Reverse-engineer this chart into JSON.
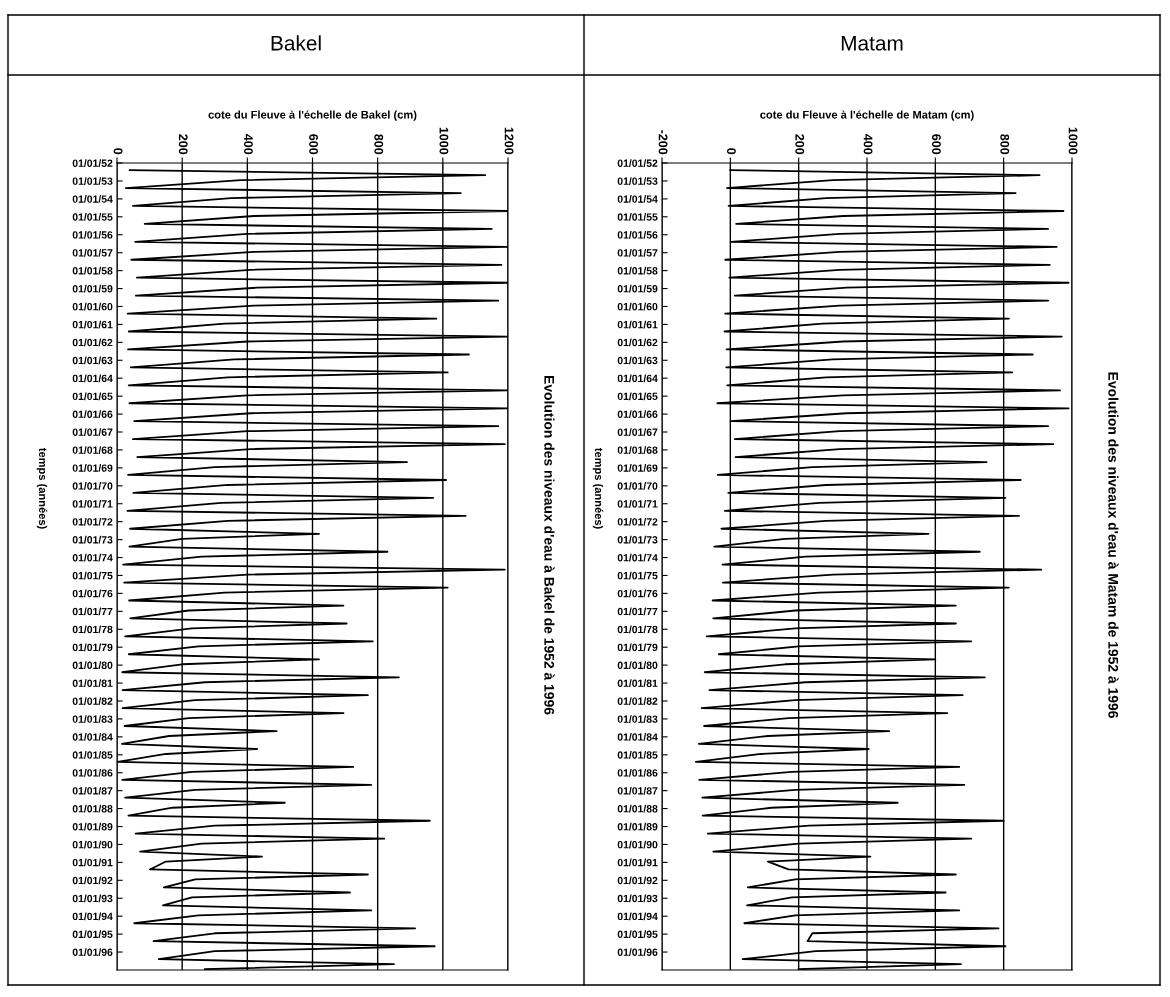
{
  "chart_data": [
    {
      "type": "line",
      "orientation": "horizontal",
      "title": "Bakel",
      "annotations": [
        "Evolution des niveaux d'eau à Bakel de 1952 à 1996"
      ],
      "xlabel": "cote du Fleuve à l'échelle de Bakel (cm)",
      "ylabel": "temps (années)",
      "grid": "x",
      "xlim": [
        0,
        1200
      ],
      "xticks": [
        0,
        200,
        400,
        600,
        800,
        1000,
        1200
      ],
      "ylim": [
        "1997-01-01",
        "1952-01-01"
      ],
      "yticks": [
        {
          "value": "1952-01-01",
          "label": "01/01/52"
        },
        {
          "value": "1953-01-01",
          "label": "01/01/53"
        },
        {
          "value": "1954-01-01",
          "label": "01/01/54"
        },
        {
          "value": "1955-01-01",
          "label": "01/01/55"
        },
        {
          "value": "1956-01-01",
          "label": "01/01/56"
        },
        {
          "value": "1957-01-01",
          "label": "01/01/57"
        },
        {
          "value": "1958-01-01",
          "label": "01/01/58"
        },
        {
          "value": "1959-01-01",
          "label": "01/01/59"
        },
        {
          "value": "1960-01-01",
          "label": "01/01/60"
        },
        {
          "value": "1961-01-01",
          "label": "01/01/61"
        },
        {
          "value": "1962-01-01",
          "label": "01/01/62"
        },
        {
          "value": "1963-01-01",
          "label": "01/01/63"
        },
        {
          "value": "1964-01-01",
          "label": "01/01/64"
        },
        {
          "value": "1965-01-01",
          "label": "01/01/65"
        },
        {
          "value": "1966-01-01",
          "label": "01/01/66"
        },
        {
          "value": "1967-01-01",
          "label": "01/01/67"
        },
        {
          "value": "1968-01-01",
          "label": "01/01/68"
        },
        {
          "value": "1969-01-01",
          "label": "01/01/69"
        },
        {
          "value": "1970-01-01",
          "label": "01/01/70"
        },
        {
          "value": "1971-01-01",
          "label": "01/01/71"
        },
        {
          "value": "1972-01-01",
          "label": "01/01/72"
        },
        {
          "value": "1973-01-01",
          "label": "01/01/73"
        },
        {
          "value": "1974-01-01",
          "label": "01/01/74"
        },
        {
          "value": "1975-01-01",
          "label": "01/01/75"
        },
        {
          "value": "1976-01-01",
          "label": "01/01/76"
        },
        {
          "value": "1977-01-01",
          "label": "01/01/77"
        },
        {
          "value": "1978-01-01",
          "label": "01/01/78"
        },
        {
          "value": "1979-01-01",
          "label": "01/01/79"
        },
        {
          "value": "1980-01-01",
          "label": "01/01/80"
        },
        {
          "value": "1981-01-01",
          "label": "01/01/81"
        },
        {
          "value": "1982-01-01",
          "label": "01/01/82"
        },
        {
          "value": "1983-01-01",
          "label": "01/01/83"
        },
        {
          "value": "1984-01-01",
          "label": "01/01/84"
        },
        {
          "value": "1985-01-01",
          "label": "01/01/85"
        },
        {
          "value": "1986-01-01",
          "label": "01/01/86"
        },
        {
          "value": "1987-01-01",
          "label": "01/01/87"
        },
        {
          "value": "1988-01-01",
          "label": "01/01/88"
        },
        {
          "value": "1989-01-01",
          "label": "01/01/89"
        },
        {
          "value": "1990-01-01",
          "label": "01/01/90"
        },
        {
          "value": "1991-01-01",
          "label": "01/01/91"
        },
        {
          "value": "1992-01-01",
          "label": "01/01/92"
        },
        {
          "value": "1993-01-01",
          "label": "01/01/93"
        },
        {
          "value": "1994-01-01",
          "label": "01/01/94"
        },
        {
          "value": "1995-01-01",
          "label": "01/01/95"
        },
        {
          "value": "1996-01-01",
          "label": "01/01/96"
        }
      ],
      "x": [
        "1952-05-25",
        "1952-09-05",
        "1952-12-15",
        "1953-05-25",
        "1953-09-05",
        "1953-12-15",
        "1954-05-25",
        "1954-09-05",
        "1954-12-15",
        "1955-05-25",
        "1955-09-05",
        "1955-12-15",
        "1956-05-25",
        "1956-09-05",
        "1956-12-15",
        "1957-05-25",
        "1957-09-05",
        "1957-12-15",
        "1958-05-25",
        "1958-09-05",
        "1958-12-15",
        "1959-05-25",
        "1959-09-05",
        "1959-12-15",
        "1960-05-25",
        "1960-09-05",
        "1960-12-15",
        "1961-05-25",
        "1961-09-05",
        "1961-12-15",
        "1962-05-25",
        "1962-09-05",
        "1962-12-15",
        "1963-05-25",
        "1963-09-05",
        "1963-12-15",
        "1964-05-25",
        "1964-09-05",
        "1964-12-15",
        "1965-05-25",
        "1965-09-05",
        "1965-12-15",
        "1966-05-25",
        "1966-09-05",
        "1966-12-15",
        "1967-05-25",
        "1967-09-05",
        "1967-12-15",
        "1968-05-25",
        "1968-09-05",
        "1968-12-15",
        "1969-05-25",
        "1969-09-05",
        "1969-12-15",
        "1970-05-25",
        "1970-09-05",
        "1970-12-15",
        "1971-05-25",
        "1971-09-05",
        "1971-12-15",
        "1972-05-25",
        "1972-09-05",
        "1972-12-15",
        "1973-05-25",
        "1973-09-05",
        "1973-12-15",
        "1974-05-25",
        "1974-09-05",
        "1974-12-15",
        "1975-05-25",
        "1975-09-05",
        "1975-12-15",
        "1976-05-25",
        "1976-09-05",
        "1976-12-15",
        "1977-05-25",
        "1977-09-05",
        "1977-12-15",
        "1978-05-25",
        "1978-09-05",
        "1978-12-15",
        "1979-05-25",
        "1979-09-05",
        "1979-12-15",
        "1980-05-25",
        "1980-09-05",
        "1980-12-15",
        "1981-05-25",
        "1981-09-05",
        "1981-12-15",
        "1982-05-25",
        "1982-09-05",
        "1982-12-15",
        "1983-05-25",
        "1983-09-05",
        "1983-12-15",
        "1984-05-25",
        "1984-09-05",
        "1984-12-15",
        "1985-05-25",
        "1985-09-05",
        "1985-12-15",
        "1986-05-25",
        "1986-09-05",
        "1986-12-15",
        "1987-05-25",
        "1987-09-05",
        "1987-12-15",
        "1988-05-25",
        "1988-09-05",
        "1988-12-15",
        "1989-05-25",
        "1989-09-05",
        "1989-12-15",
        "1990-05-25",
        "1990-09-05",
        "1990-12-15",
        "1991-05-25",
        "1991-09-05",
        "1991-12-15",
        "1992-05-25",
        "1992-09-05",
        "1992-12-15",
        "1993-05-25",
        "1993-09-05",
        "1993-12-15",
        "1994-05-25",
        "1994-09-05",
        "1994-12-15",
        "1995-05-25",
        "1995-09-05",
        "1995-12-15",
        "1996-05-25",
        "1996-09-05",
        "1996-12-15"
      ],
      "series": [
        {
          "color": "#000000",
          "values": [
            39,
            1130,
            380,
            27,
            1055,
            350,
            49,
            1200,
            420,
            85,
            1150,
            400,
            56,
            1200,
            420,
            44,
            1180,
            410,
            61,
            1200,
            430,
            58,
            1170,
            420,
            33,
            980,
            330,
            36,
            1200,
            400,
            34,
            1080,
            360,
            42,
            1015,
            340,
            36,
            1200,
            400,
            38,
            1200,
            410,
            53,
            1170,
            400,
            49,
            1190,
            410,
            62,
            890,
            300,
            34,
            1010,
            340,
            50,
            970,
            320,
            32,
            1070,
            340,
            40,
            620,
            200,
            38,
            830,
            260,
            19,
            1190,
            400,
            22,
            1015,
            330,
            37,
            695,
            220,
            41,
            705,
            230,
            25,
            785,
            250,
            36,
            620,
            200,
            16,
            865,
            270,
            17,
            770,
            240,
            17,
            695,
            220,
            23,
            490,
            160,
            15,
            430,
            150,
            2,
            725,
            230,
            16,
            780,
            240,
            25,
            515,
            170,
            35,
            960,
            300,
            57,
            820,
            260,
            71,
            445,
            150,
            101,
            770,
            240,
            144,
            715,
            230,
            141,
            780,
            250,
            53,
            915,
            300,
            112,
            975,
            300,
            128,
            850,
            270
          ]
        }
      ]
    },
    {
      "type": "line",
      "orientation": "horizontal",
      "title": "Matam",
      "annotations": [
        "Evolution des niveaux d'eau à Matam de 1952 à 1996"
      ],
      "xlabel": "cote du Fleuve à l'échelle de Matam (cm)",
      "ylabel": "temps (années)",
      "grid": "x",
      "xlim": [
        -200,
        1000
      ],
      "xticks": [
        -200,
        0,
        200,
        400,
        600,
        800,
        1000
      ],
      "ylim": [
        "1997-01-01",
        "1952-01-01"
      ],
      "yticks": [
        {
          "value": "1952-01-01",
          "label": "01/01/52"
        },
        {
          "value": "1953-01-01",
          "label": "01/01/53"
        },
        {
          "value": "1954-01-01",
          "label": "01/01/54"
        },
        {
          "value": "1955-01-01",
          "label": "01/01/55"
        },
        {
          "value": "1956-01-01",
          "label": "01/01/56"
        },
        {
          "value": "1957-01-01",
          "label": "01/01/57"
        },
        {
          "value": "1958-01-01",
          "label": "01/01/58"
        },
        {
          "value": "1959-01-01",
          "label": "01/01/59"
        },
        {
          "value": "1960-01-01",
          "label": "01/01/60"
        },
        {
          "value": "1961-01-01",
          "label": "01/01/61"
        },
        {
          "value": "1962-01-01",
          "label": "01/01/62"
        },
        {
          "value": "1963-01-01",
          "label": "01/01/63"
        },
        {
          "value": "1964-01-01",
          "label": "01/01/64"
        },
        {
          "value": "1965-01-01",
          "label": "01/01/65"
        },
        {
          "value": "1966-01-01",
          "label": "01/01/66"
        },
        {
          "value": "1967-01-01",
          "label": "01/01/67"
        },
        {
          "value": "1968-01-01",
          "label": "01/01/68"
        },
        {
          "value": "1969-01-01",
          "label": "01/01/69"
        },
        {
          "value": "1970-01-01",
          "label": "01/01/70"
        },
        {
          "value": "1971-01-01",
          "label": "01/01/71"
        },
        {
          "value": "1972-01-01",
          "label": "01/01/72"
        },
        {
          "value": "1973-01-01",
          "label": "01/01/73"
        },
        {
          "value": "1974-01-01",
          "label": "01/01/74"
        },
        {
          "value": "1975-01-01",
          "label": "01/01/75"
        },
        {
          "value": "1976-01-01",
          "label": "01/01/76"
        },
        {
          "value": "1977-01-01",
          "label": "01/01/77"
        },
        {
          "value": "1978-01-01",
          "label": "01/01/78"
        },
        {
          "value": "1979-01-01",
          "label": "01/01/79"
        },
        {
          "value": "1980-01-01",
          "label": "01/01/80"
        },
        {
          "value": "1981-01-01",
          "label": "01/01/81"
        },
        {
          "value": "1982-01-01",
          "label": "01/01/82"
        },
        {
          "value": "1983-01-01",
          "label": "01/01/83"
        },
        {
          "value": "1984-01-01",
          "label": "01/01/84"
        },
        {
          "value": "1985-01-01",
          "label": "01/01/85"
        },
        {
          "value": "1986-01-01",
          "label": "01/01/86"
        },
        {
          "value": "1987-01-01",
          "label": "01/01/87"
        },
        {
          "value": "1988-01-01",
          "label": "01/01/88"
        },
        {
          "value": "1989-01-01",
          "label": "01/01/89"
        },
        {
          "value": "1990-01-01",
          "label": "01/01/90"
        },
        {
          "value": "1991-01-01",
          "label": "01/01/91"
        },
        {
          "value": "1992-01-01",
          "label": "01/01/92"
        },
        {
          "value": "1993-01-01",
          "label": "01/01/93"
        },
        {
          "value": "1994-01-01",
          "label": "01/01/94"
        },
        {
          "value": "1995-01-01",
          "label": "01/01/95"
        },
        {
          "value": "1996-01-01",
          "label": "01/01/96"
        }
      ],
      "x": [
        "1952-05-25",
        "1952-09-05",
        "1952-12-15",
        "1953-05-25",
        "1953-09-05",
        "1953-12-15",
        "1954-05-25",
        "1954-09-05",
        "1954-12-15",
        "1955-05-25",
        "1955-09-05",
        "1955-12-15",
        "1956-05-25",
        "1956-09-05",
        "1956-12-15",
        "1957-05-25",
        "1957-09-05",
        "1957-12-15",
        "1958-05-25",
        "1958-09-05",
        "1958-12-15",
        "1959-05-25",
        "1959-09-05",
        "1959-12-15",
        "1960-05-25",
        "1960-09-05",
        "1960-12-15",
        "1961-05-25",
        "1961-09-05",
        "1961-12-15",
        "1962-05-25",
        "1962-09-05",
        "1962-12-15",
        "1963-05-25",
        "1963-09-05",
        "1963-12-15",
        "1964-05-25",
        "1964-09-05",
        "1964-12-15",
        "1965-05-25",
        "1965-09-05",
        "1965-12-15",
        "1966-05-25",
        "1966-09-05",
        "1966-12-15",
        "1967-05-25",
        "1967-09-05",
        "1967-12-15",
        "1968-05-25",
        "1968-09-05",
        "1968-12-15",
        "1969-05-25",
        "1969-09-05",
        "1969-12-15",
        "1970-05-25",
        "1970-09-05",
        "1970-12-15",
        "1971-05-25",
        "1971-09-05",
        "1971-12-15",
        "1972-05-25",
        "1972-09-05",
        "1972-12-15",
        "1973-05-25",
        "1973-09-05",
        "1973-12-15",
        "1974-05-25",
        "1974-09-05",
        "1974-12-15",
        "1975-05-25",
        "1975-09-05",
        "1975-12-15",
        "1976-05-25",
        "1976-09-05",
        "1976-12-15",
        "1977-05-25",
        "1977-09-05",
        "1977-12-15",
        "1978-05-25",
        "1978-09-05",
        "1978-12-15",
        "1979-05-25",
        "1979-09-05",
        "1979-12-15",
        "1980-05-25",
        "1980-09-05",
        "1980-12-15",
        "1981-05-25",
        "1981-09-05",
        "1981-12-15",
        "1982-05-25",
        "1982-09-05",
        "1982-12-15",
        "1983-05-25",
        "1983-09-05",
        "1983-12-15",
        "1984-05-25",
        "1984-09-05",
        "1984-12-15",
        "1985-05-25",
        "1985-09-05",
        "1985-12-15",
        "1986-05-25",
        "1986-09-05",
        "1986-12-15",
        "1987-05-25",
        "1987-09-05",
        "1987-12-15",
        "1988-05-25",
        "1988-09-05",
        "1988-12-15",
        "1989-05-25",
        "1989-09-05",
        "1989-12-15",
        "1990-05-25",
        "1990-09-05",
        "1990-12-15",
        "1991-05-25",
        "1991-09-05",
        "1991-12-15",
        "1992-05-25",
        "1992-09-05",
        "1992-12-15",
        "1993-05-25",
        "1993-09-05",
        "1993-12-15",
        "1994-05-25",
        "1994-09-05",
        "1994-12-15",
        "1995-05-25",
        "1995-09-05",
        "1995-12-15",
        "1996-05-25",
        "1996-09-05",
        "1996-12-15"
      ],
      "series": [
        {
          "color": "#000000",
          "values": [
            0,
            905,
            300,
            -10,
            835,
            280,
            -5,
            975,
            330,
            17,
            930,
            320,
            2,
            955,
            320,
            -15,
            935,
            320,
            -3,
            990,
            340,
            13,
            930,
            320,
            -15,
            815,
            270,
            -17,
            970,
            330,
            -11,
            885,
            300,
            -12,
            825,
            280,
            -9,
            965,
            330,
            -38,
            990,
            340,
            2,
            930,
            320,
            13,
            945,
            320,
            15,
            750,
            240,
            -37,
            850,
            280,
            -6,
            805,
            260,
            -16,
            845,
            280,
            -26,
            580,
            160,
            -47,
            730,
            220,
            -23,
            910,
            300,
            -22,
            815,
            260,
            -52,
            660,
            190,
            -50,
            660,
            190,
            -69,
            705,
            200,
            -34,
            600,
            160,
            -75,
            745,
            220,
            -61,
            680,
            190,
            -84,
            635,
            170,
            -77,
            465,
            110,
            -92,
            405,
            90,
            -101,
            670,
            180,
            -91,
            685,
            190,
            -82,
            490,
            120,
            -81,
            800,
            230,
            -66,
            705,
            200,
            -50,
            410,
            110,
            170,
            660,
            190,
            51,
            630,
            180,
            49,
            670,
            190,
            41,
            785,
            240,
            226,
            805,
            250,
            36,
            675,
            200
          ]
        }
      ]
    }
  ]
}
